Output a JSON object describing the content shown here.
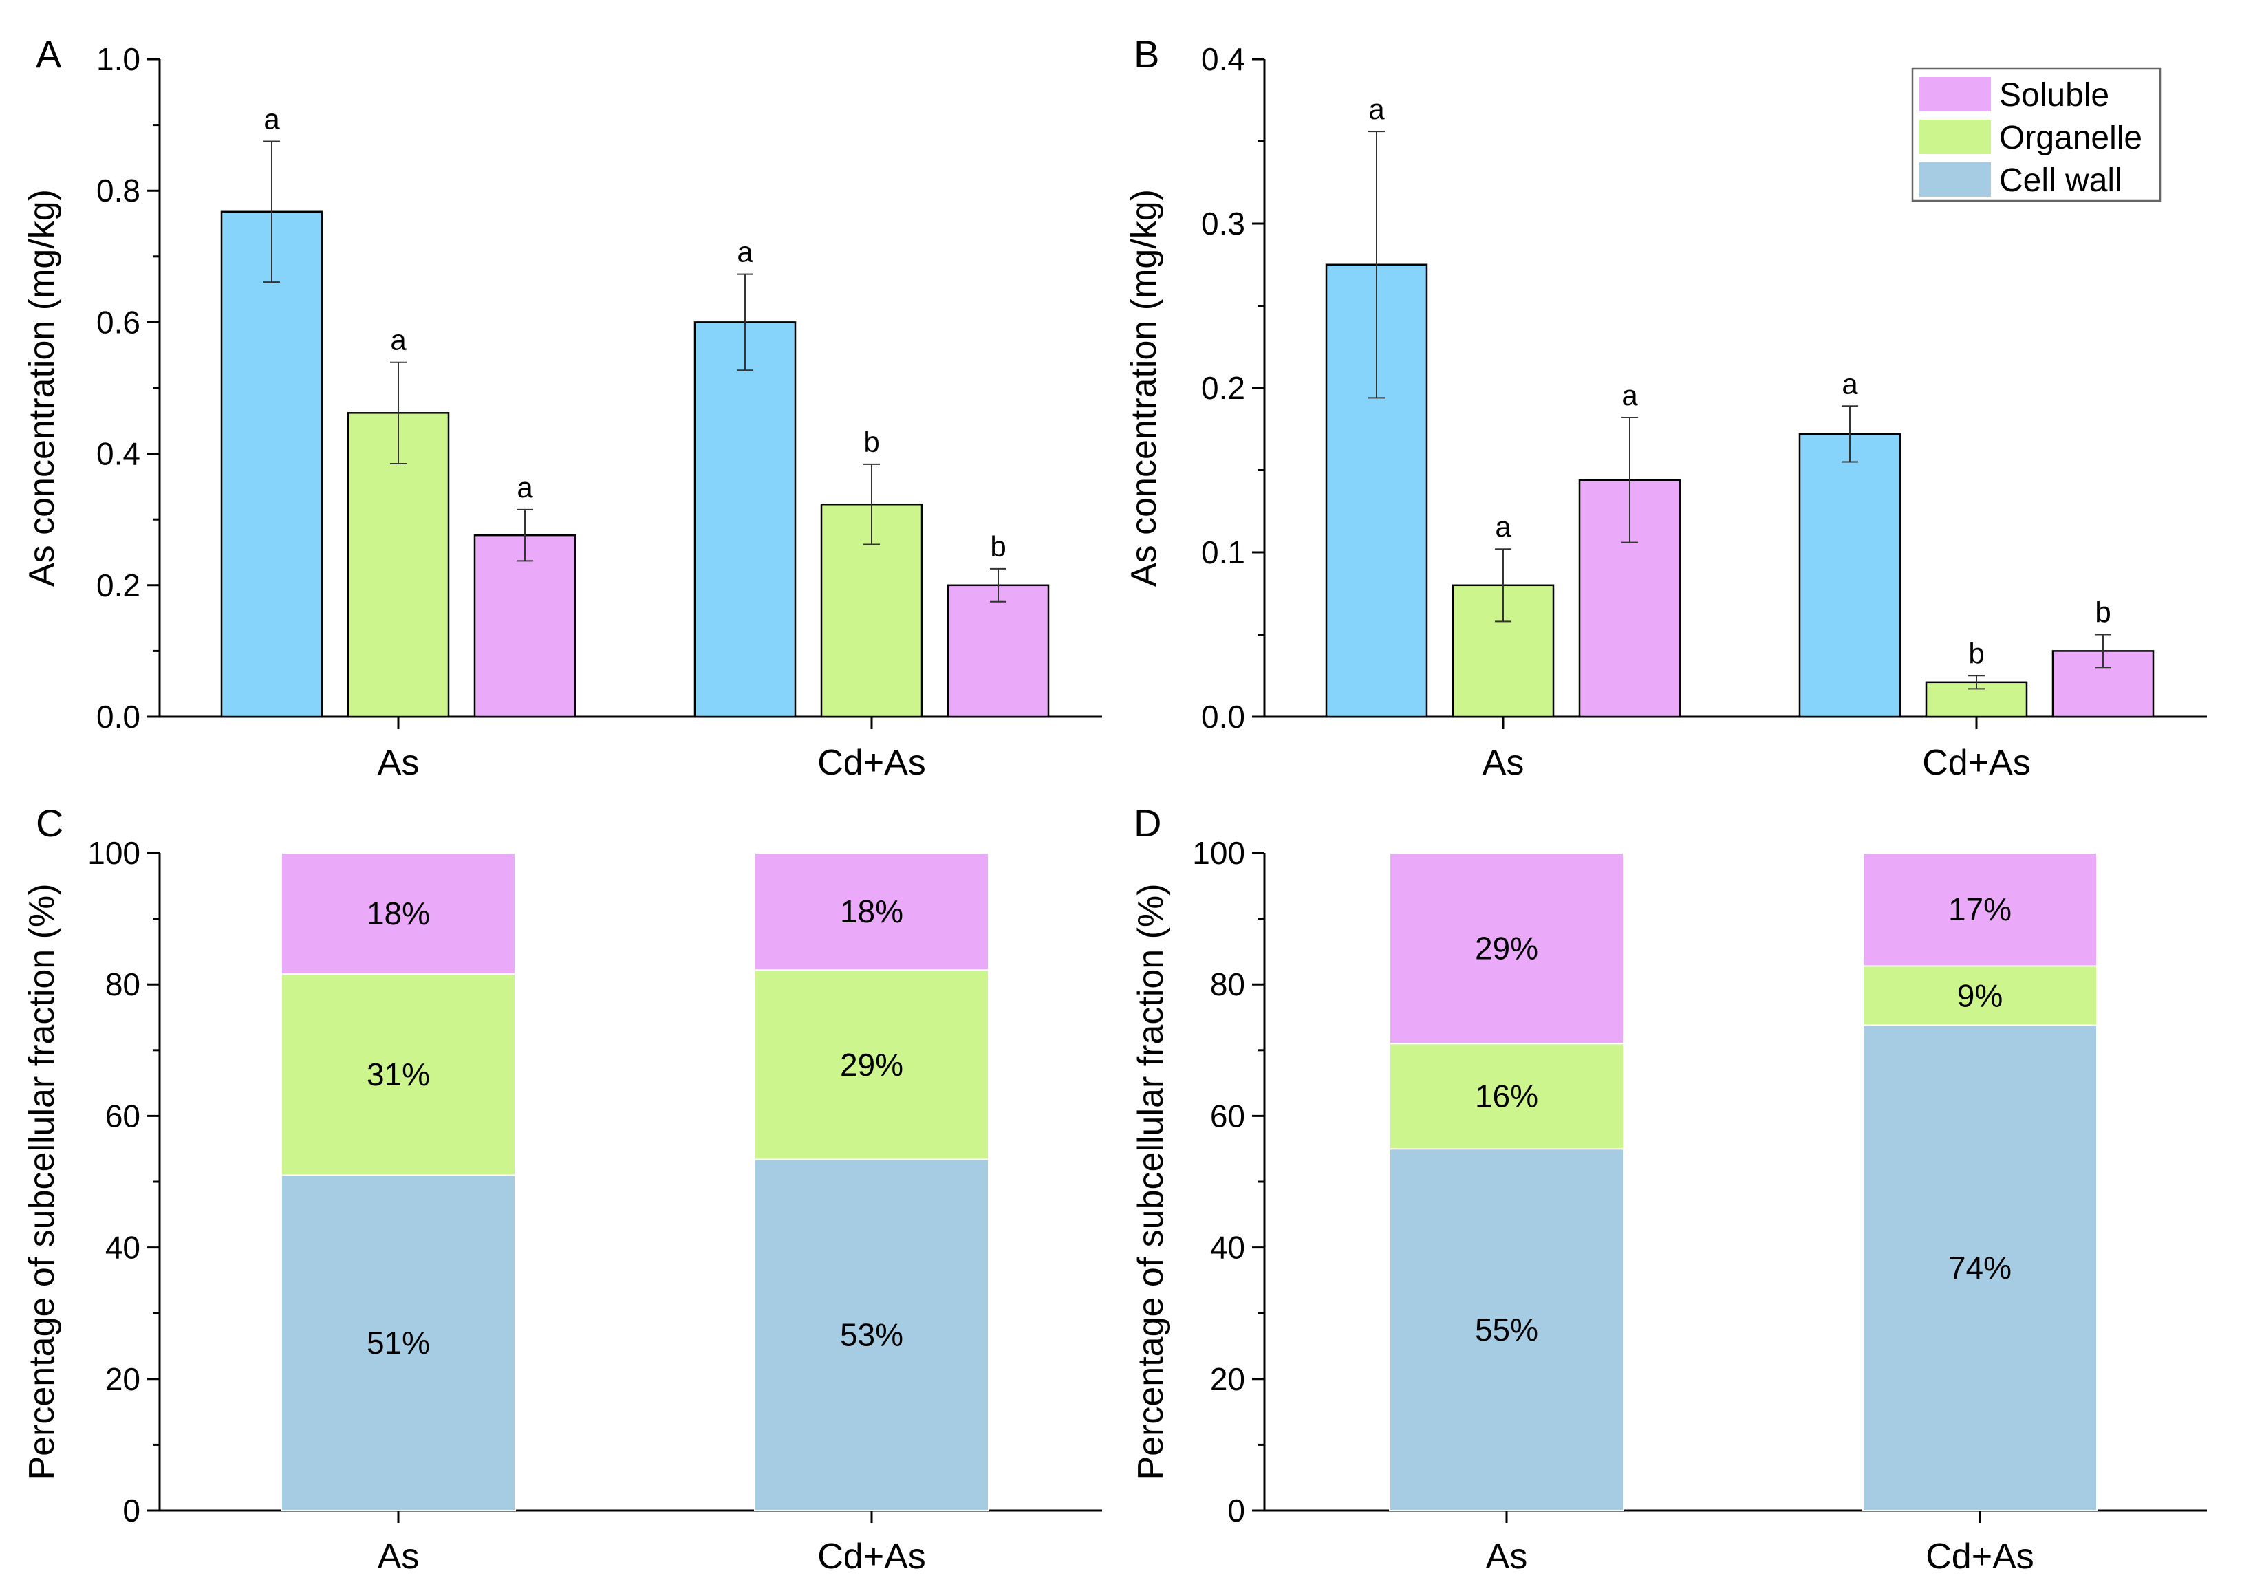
{
  "legend": {
    "items": [
      {
        "name": "Soluble",
        "color": "#EBA9FA"
      },
      {
        "name": "Organelle",
        "color": "#CDF58D"
      },
      {
        "name": "Cell wall",
        "color": "#A6CCE4"
      }
    ]
  },
  "chart_data": [
    {
      "panel": "A",
      "type": "bar",
      "ylabel": "As concentration (mg/kg)",
      "ylim": [
        0,
        1.0
      ],
      "yticks": [
        "0.0",
        "0.2",
        "0.4",
        "0.6",
        "0.8",
        "1.0"
      ],
      "categories": [
        "As",
        "Cd+As"
      ],
      "series": [
        {
          "name": "Cell wall",
          "color": "#86D4FC",
          "values": [
            0.768,
            0.6
          ],
          "errors": [
            0.107,
            0.073
          ],
          "letters": [
            "a",
            "a"
          ]
        },
        {
          "name": "Organelle",
          "color": "#CDF58D",
          "values": [
            0.462,
            0.323
          ],
          "errors": [
            0.077,
            0.061
          ],
          "letters": [
            "a",
            "b"
          ]
        },
        {
          "name": "Soluble",
          "color": "#EBA9FA",
          "values": [
            0.276,
            0.2
          ],
          "errors": [
            0.039,
            0.025
          ],
          "letters": [
            "a",
            "b"
          ]
        }
      ]
    },
    {
      "panel": "B",
      "type": "bar",
      "ylabel": "As concentration (mg/kg)",
      "ylim": [
        0,
        0.4
      ],
      "yticks": [
        "0.0",
        "0.1",
        "0.2",
        "0.3",
        "0.4"
      ],
      "categories": [
        "As",
        "Cd+As"
      ],
      "series": [
        {
          "name": "Cell wall",
          "color": "#86D4FC",
          "values": [
            0.275,
            0.172
          ],
          "errors": [
            0.081,
            0.017
          ],
          "letters": [
            "a",
            "a"
          ]
        },
        {
          "name": "Organelle",
          "color": "#CDF58D",
          "values": [
            0.08,
            0.021
          ],
          "errors": [
            0.022,
            0.004
          ],
          "letters": [
            "a",
            "b"
          ]
        },
        {
          "name": "Soluble",
          "color": "#EBA9FA",
          "values": [
            0.144,
            0.04
          ],
          "errors": [
            0.038,
            0.01
          ],
          "letters": [
            "a",
            "b"
          ]
        }
      ]
    },
    {
      "panel": "C",
      "type": "stacked-bar",
      "ylabel": "Percentage of subcellular fraction (%)",
      "ylim": [
        0,
        100
      ],
      "yticks": [
        "0",
        "20",
        "40",
        "60",
        "80",
        "100"
      ],
      "categories": [
        "As",
        "Cd+As"
      ],
      "series": [
        {
          "name": "Cell wall",
          "color": "#A6CCE4",
          "values": [
            51,
            53.4
          ],
          "labels": [
            "51%",
            "53%"
          ]
        },
        {
          "name": "Organelle",
          "color": "#CDF58D",
          "values": [
            30.6,
            28.8
          ],
          "labels": [
            "31%",
            "29%"
          ]
        },
        {
          "name": "Soluble",
          "color": "#EBA9FA",
          "values": [
            18.4,
            17.8
          ],
          "labels": [
            "18%",
            "18%"
          ]
        }
      ]
    },
    {
      "panel": "D",
      "type": "stacked-bar",
      "ylabel": "Percentage of subcellular fraction (%)",
      "ylim": [
        0,
        100
      ],
      "yticks": [
        "0",
        "20",
        "40",
        "60",
        "80",
        "100"
      ],
      "categories": [
        "As",
        "Cd+As"
      ],
      "series": [
        {
          "name": "Cell wall",
          "color": "#A6CCE4",
          "values": [
            55,
            73.8
          ],
          "labels": [
            "55%",
            "74%"
          ]
        },
        {
          "name": "Organelle",
          "color": "#CDF58D",
          "values": [
            16,
            9
          ],
          "labels": [
            "16%",
            "9%"
          ]
        },
        {
          "name": "Soluble",
          "color": "#EBA9FA",
          "values": [
            29,
            17.2
          ],
          "labels": [
            "29%",
            "17%"
          ]
        }
      ]
    }
  ]
}
